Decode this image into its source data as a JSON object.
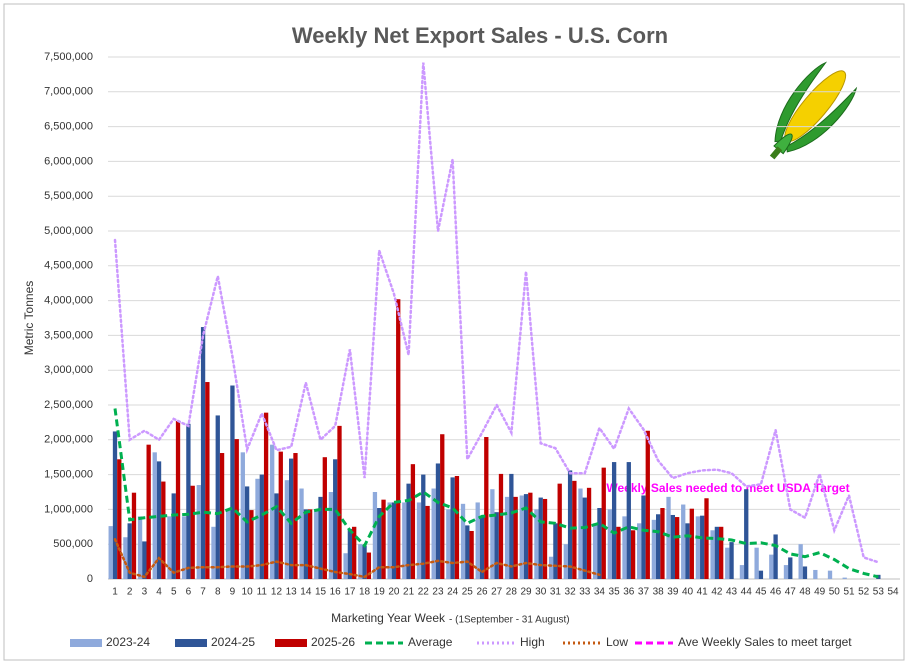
{
  "chart_data": {
    "type": "bar",
    "title": "Weekly Net Export Sales - U.S. Corn",
    "ylabel": "Metric Tonnes",
    "xlabel": "Marketing Year Week",
    "xlabel_note": "- (1September - 31 August)",
    "annotation": "Weekly Sales needed to meet USDA Target",
    "grid": true,
    "legend": "bottom",
    "ylim": [
      0,
      7500000
    ],
    "yticks": [
      0,
      {
        "value": 500000,
        "label": "500,000"
      },
      {
        "value": 1000000,
        "label": "1,000,000"
      },
      {
        "value": 1500000,
        "label": "1,500,000"
      },
      {
        "value": 2000000,
        "label": "2,000,000"
      },
      {
        "value": 2500000,
        "label": "2,500,000"
      },
      {
        "value": 3000000,
        "label": "3,000,000"
      },
      {
        "value": 3500000,
        "label": "3,500,000"
      },
      {
        "value": 4000000,
        "label": "4,000,000"
      },
      {
        "value": 4500000,
        "label": "4,500,000"
      },
      {
        "value": 5000000,
        "label": "5,000,000"
      },
      {
        "value": 5500000,
        "label": "5,500,000"
      },
      {
        "value": 6000000,
        "label": "6,000,000"
      },
      {
        "value": 6500000,
        "label": "6,500,000"
      },
      {
        "value": 7000000,
        "label": "7,000,000"
      },
      {
        "value": 7500000,
        "label": "7,500,000"
      }
    ],
    "categories": [
      "1",
      "2",
      "3",
      "4",
      "5",
      "6",
      "7",
      "8",
      "9",
      "10",
      "11",
      "12",
      "13",
      "14",
      "15",
      "16",
      "17",
      "18",
      "19",
      "20",
      "21",
      "22",
      "23",
      "24",
      "25",
      "26",
      "27",
      "28",
      "29",
      "30",
      "31",
      "32",
      "33",
      "34",
      "35",
      "36",
      "37",
      "38",
      "39",
      "40",
      "41",
      "42",
      "43",
      "44",
      "45",
      "46",
      "47",
      "48",
      "49",
      "50",
      "51",
      "52",
      "53",
      "54"
    ],
    "series": [
      {
        "name": "2023-24",
        "type": "bar",
        "color": "#8faadc",
        "values": [
          760000,
          600000,
          900000,
          1820000,
          900000,
          900000,
          1350000,
          750000,
          1000000,
          1820000,
          1440000,
          1930000,
          1420000,
          1300000,
          1000000,
          1250000,
          370000,
          500000,
          1250000,
          1100000,
          1100000,
          1100000,
          1300000,
          1000000,
          1080000,
          1100000,
          1290000,
          1180000,
          1200000,
          1000000,
          320000,
          500000,
          1300000,
          800000,
          1000000,
          900000,
          800000,
          850000,
          1180000,
          1070000,
          900000,
          700000,
          450000,
          200000,
          450000,
          350000,
          200000,
          500000,
          130000,
          120000,
          20000,
          null,
          null,
          null
        ]
      },
      {
        "name": "2024-25",
        "type": "bar",
        "color": "#2f5597",
        "values": [
          2120000,
          800000,
          540000,
          1690000,
          1230000,
          2230000,
          3620000,
          2350000,
          2780000,
          1330000,
          1500000,
          1230000,
          1730000,
          1000000,
          1180000,
          1720000,
          720000,
          480000,
          1020000,
          1100000,
          1370000,
          1500000,
          1660000,
          1460000,
          770000,
          900000,
          960000,
          1510000,
          1220000,
          1170000,
          800000,
          1560000,
          1170000,
          1020000,
          1680000,
          1680000,
          1200000,
          930000,
          920000,
          800000,
          910000,
          750000,
          530000,
          1290000,
          120000,
          640000,
          310000,
          180000,
          null,
          null,
          null,
          null,
          60000,
          null
        ]
      },
      {
        "name": "2025-26",
        "type": "bar",
        "color": "#c00000",
        "values": [
          1720000,
          1240000,
          1930000,
          1400000,
          2270000,
          1340000,
          2830000,
          1810000,
          2010000,
          990000,
          2390000,
          1830000,
          1810000,
          1000000,
          1750000,
          2200000,
          750000,
          380000,
          1140000,
          4020000,
          1650000,
          1050000,
          2080000,
          1480000,
          690000,
          2040000,
          1510000,
          1180000,
          1240000,
          1150000,
          1370000,
          1410000,
          1310000,
          1600000,
          750000,
          700000,
          2130000,
          1020000,
          890000,
          1010000,
          1160000,
          750000,
          null,
          null,
          null,
          null,
          null,
          null,
          null,
          null,
          null,
          null,
          null,
          null
        ]
      },
      {
        "name": "Average",
        "type": "line",
        "style": "dashed",
        "color": "#00b050",
        "values": [
          2450000,
          850000,
          880000,
          900000,
          920000,
          930000,
          960000,
          940000,
          1020000,
          820000,
          920000,
          1040000,
          800000,
          960000,
          1000000,
          1000000,
          700000,
          480000,
          900000,
          1100000,
          1130000,
          1250000,
          1100000,
          1020000,
          800000,
          900000,
          920000,
          950000,
          1020000,
          820000,
          800000,
          730000,
          740000,
          800000,
          660000,
          750000,
          700000,
          680000,
          600000,
          620000,
          590000,
          580000,
          560000,
          510000,
          520000,
          480000,
          360000,
          320000,
          380000,
          280000,
          150000,
          80000,
          30000,
          null
        ]
      },
      {
        "name": "High",
        "type": "line",
        "style": "dotted",
        "color": "#cc99ff",
        "values": [
          4870000,
          2000000,
          2130000,
          2000000,
          2300000,
          2200000,
          3500000,
          4350000,
          3200000,
          1860000,
          2380000,
          1850000,
          1900000,
          2820000,
          2000000,
          2200000,
          3300000,
          1450000,
          4720000,
          4100000,
          3220000,
          7420000,
          5000000,
          6030000,
          1720000,
          2100000,
          2500000,
          2100000,
          4420000,
          1950000,
          1880000,
          1520000,
          1520000,
          2170000,
          1870000,
          2450000,
          2150000,
          1700000,
          1450000,
          1520000,
          1560000,
          1570000,
          1520000,
          1330000,
          1360000,
          2140000,
          1000000,
          880000,
          1510000,
          700000,
          1200000,
          310000,
          240000,
          null
        ]
      },
      {
        "name": "Low",
        "type": "line",
        "style": "dotted",
        "color": "#c55a11",
        "values": [
          570000,
          90000,
          30000,
          300000,
          90000,
          160000,
          170000,
          170000,
          180000,
          180000,
          200000,
          250000,
          200000,
          200000,
          150000,
          100000,
          70000,
          30000,
          170000,
          170000,
          200000,
          220000,
          260000,
          230000,
          250000,
          100000,
          230000,
          180000,
          230000,
          200000,
          190000,
          180000,
          120000,
          60000,
          null,
          null,
          null,
          null,
          null,
          null,
          null,
          null,
          null,
          null,
          null,
          null,
          null,
          null,
          null,
          null,
          null,
          null,
          null,
          null
        ]
      },
      {
        "name": "Ave Weekly Sales to meet target",
        "type": "line",
        "style": "dashed",
        "color": "#ff00ff",
        "values": [
          null,
          null,
          null,
          null,
          null,
          null,
          null,
          null,
          null,
          null,
          null,
          null,
          null,
          null,
          null,
          null,
          null,
          null,
          null,
          null,
          null,
          null,
          null,
          null,
          null,
          null,
          null,
          null,
          null,
          null,
          null,
          null,
          null,
          null,
          null,
          null,
          null,
          null,
          null,
          null,
          null,
          null,
          null,
          null,
          null,
          null,
          null,
          null,
          null,
          null,
          null,
          null,
          null,
          null
        ]
      }
    ]
  }
}
